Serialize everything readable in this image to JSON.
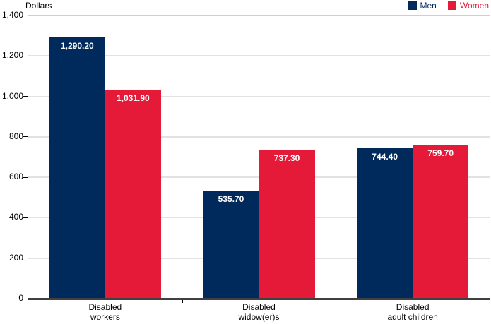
{
  "ylabel": "Dollars",
  "chart_data": {
    "type": "bar",
    "title": "",
    "ylabel": "Dollars",
    "xlabel": "",
    "categories": [
      "Disabled workers",
      "Disabled widow(er)s",
      "Disabled adult children"
    ],
    "categories_display": [
      "Disabled\nworkers",
      "Disabled\nwidow(er)s",
      "Disabled\nadult children"
    ],
    "series": [
      {
        "name": "Men",
        "color": "#002a5c",
        "values": [
          1290.2,
          535.7,
          744.4
        ],
        "value_labels": [
          "1,290.20",
          "535.70",
          "744.40"
        ]
      },
      {
        "name": "Women",
        "color": "#e41a38",
        "values": [
          1031.9,
          737.3,
          759.7
        ],
        "value_labels": [
          "1,031.90",
          "737.30",
          "759.70"
        ]
      }
    ],
    "ylim": [
      0,
      1400
    ],
    "yticks": [
      0,
      200,
      400,
      600,
      800,
      1000,
      1200,
      1400
    ],
    "ytick_labels": [
      "0",
      "200",
      "400",
      "600",
      "800",
      "1,000",
      "1,200",
      "1,400"
    ],
    "grid": true,
    "legend_position": "top-right",
    "bar_value_label_color": "#ffffff"
  }
}
